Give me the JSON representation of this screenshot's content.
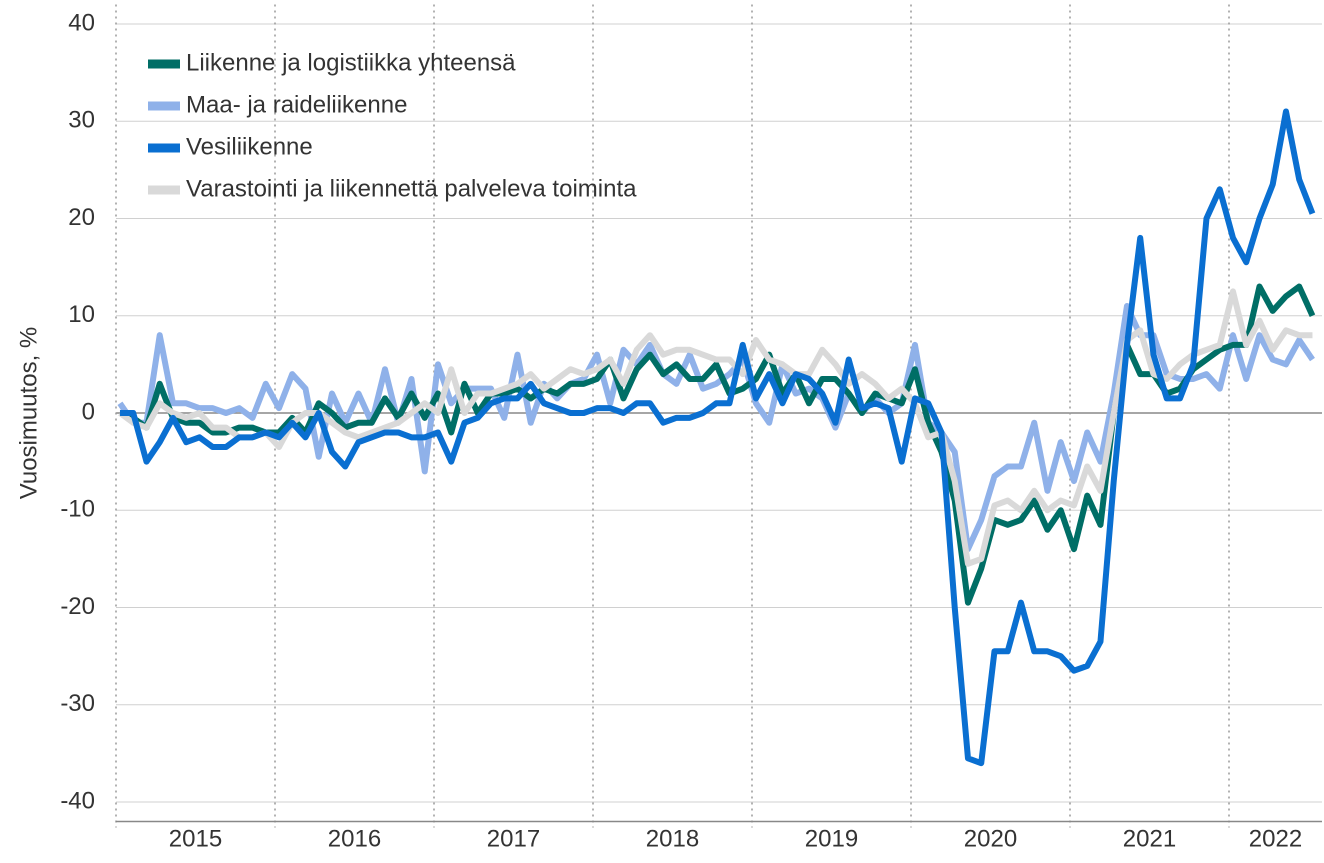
{
  "chart_data": {
    "type": "line",
    "ylabel": "Vuosimuutos, %",
    "categories": [
      "2015",
      null,
      null,
      null,
      null,
      null,
      null,
      null,
      null,
      null,
      null,
      null,
      "2016",
      null,
      null,
      null,
      null,
      null,
      null,
      null,
      null,
      null,
      null,
      null,
      "2017",
      null,
      null,
      null,
      null,
      null,
      null,
      null,
      null,
      null,
      null,
      null,
      "2018",
      null,
      null,
      null,
      null,
      null,
      null,
      null,
      null,
      null,
      null,
      null,
      "2019",
      null,
      null,
      null,
      null,
      null,
      null,
      null,
      null,
      null,
      null,
      null,
      "2020",
      null,
      null,
      null,
      null,
      null,
      null,
      null,
      null,
      null,
      null,
      null,
      "2021",
      null,
      null,
      null,
      null,
      null,
      null,
      null,
      null,
      null,
      null,
      null,
      "2022",
      null,
      null,
      null,
      null,
      null,
      null
    ],
    "ylim": [
      -42,
      42
    ],
    "yticks": [
      -40,
      -30,
      -20,
      -10,
      0,
      10,
      20,
      30,
      40
    ],
    "grid": true,
    "legend": "upper left",
    "series": [
      {
        "name": "Liikenne ja logistiikka yhteensä",
        "color": "#006e66",
        "values": [
          0,
          -0.5,
          -1.5,
          3,
          -0.5,
          -1,
          -1,
          -2,
          -2,
          -1.5,
          -1.5,
          -2,
          -2,
          -0.5,
          -2,
          1,
          0,
          -1.5,
          -1,
          -1,
          1.5,
          -0.5,
          2,
          -0.5,
          2,
          -2,
          3,
          0,
          2,
          2,
          2.5,
          1.5,
          2.5,
          2,
          3,
          3,
          3.5,
          5.5,
          1.5,
          4.5,
          6,
          4,
          5,
          3.5,
          3.5,
          5,
          2,
          2.5,
          3.5,
          6,
          2,
          4,
          1,
          3.5,
          3.5,
          2,
          0,
          2,
          1.5,
          1,
          4.5,
          -1,
          -4,
          -9,
          -19.5,
          -16,
          -11,
          -11.5,
          -11,
          -9,
          -12,
          -10,
          -14,
          -8.5,
          -11.5,
          0,
          7,
          4,
          4,
          2,
          2.5,
          4.5,
          5.5,
          6.5,
          7,
          7,
          13,
          10.5,
          12,
          13,
          10
        ]
      },
      {
        "name": "Maa- ja raideliikenne",
        "color": "#8fb1e9",
        "values": [
          1,
          -1,
          -1,
          8,
          1,
          1,
          0.5,
          0.5,
          0,
          0.5,
          -0.5,
          3,
          0.5,
          4,
          2.5,
          -4.5,
          2,
          -1,
          2,
          -1,
          4.5,
          -1,
          3.5,
          -6,
          5,
          1,
          2.5,
          2.5,
          2.5,
          -0.5,
          6,
          -1,
          3,
          1.5,
          3,
          3.5,
          6,
          1,
          6.5,
          5,
          7,
          4,
          3,
          6,
          2.5,
          3,
          4,
          5.5,
          1,
          -1,
          5,
          2,
          2.5,
          1.5,
          -1.5,
          2,
          0,
          1.5,
          0,
          1,
          7,
          -1,
          -2,
          -4,
          -14,
          -11,
          -6.5,
          -5.5,
          -5.5,
          -1,
          -8,
          -3,
          -7,
          -2,
          -5,
          2,
          11,
          8,
          8,
          4,
          3.5,
          3.5,
          4,
          2.5,
          8,
          3.5,
          8,
          5.5,
          5,
          7.5,
          5.5
        ]
      },
      {
        "name": "Vesiliikenne",
        "color": "#0a6fd1",
        "values": [
          0,
          0,
          -5,
          -3,
          -0.5,
          -3,
          -2.5,
          -3.5,
          -3.5,
          -2.5,
          -2.5,
          -2,
          -2.5,
          -1,
          -2.5,
          0,
          -4,
          -5.5,
          -3,
          -2.5,
          -2,
          -2,
          -2.5,
          -2.5,
          -2,
          -5,
          -1,
          -0.5,
          1,
          1.5,
          1.5,
          3,
          1,
          0.5,
          0,
          0,
          0.5,
          0.5,
          0,
          1,
          1,
          -1,
          -0.5,
          -0.5,
          0,
          1,
          1,
          7,
          1.5,
          4,
          1,
          4,
          3.5,
          2,
          -1,
          5.5,
          0.5,
          1,
          0.5,
          -5,
          1.5,
          1,
          -2,
          -20,
          -35.5,
          -36,
          -24.5,
          -24.5,
          -19.5,
          -24.5,
          -24.5,
          -25,
          -26.5,
          -26,
          -23.5,
          -7,
          7,
          18,
          6,
          1.5,
          1.5,
          5,
          20,
          23,
          18,
          15.5,
          20,
          23.5,
          31,
          24,
          20.5
        ]
      },
      {
        "name": "Varastointi ja liikennettä palveleva toiminta",
        "color": "#d9d9d9",
        "values": [
          0,
          -1,
          -1.5,
          1,
          0,
          -0.5,
          0,
          -1.5,
          -1.5,
          -2.5,
          -2.5,
          -2,
          -3.5,
          -1,
          0,
          0,
          -1,
          -2,
          -2.5,
          -2,
          -1.5,
          -1,
          0,
          1,
          0,
          4.5,
          0,
          2,
          2,
          2.5,
          3,
          4,
          2.5,
          3.5,
          4.5,
          4,
          4.5,
          5.5,
          3,
          6.5,
          8,
          6,
          6.5,
          6.5,
          6,
          5.5,
          5.5,
          4,
          7.5,
          5.5,
          5,
          4,
          4,
          6.5,
          5,
          3,
          4,
          3,
          1.5,
          2.5,
          1,
          -2.5,
          -2,
          -7,
          -15.5,
          -15,
          -9.5,
          -9,
          -10,
          -8,
          -10,
          -9,
          -9.5,
          -5.5,
          -8,
          0,
          7.5,
          8.5,
          4,
          3.5,
          5,
          6,
          6.5,
          7,
          12.5,
          7,
          9.5,
          6.5,
          8.5,
          8,
          8
        ]
      }
    ]
  }
}
